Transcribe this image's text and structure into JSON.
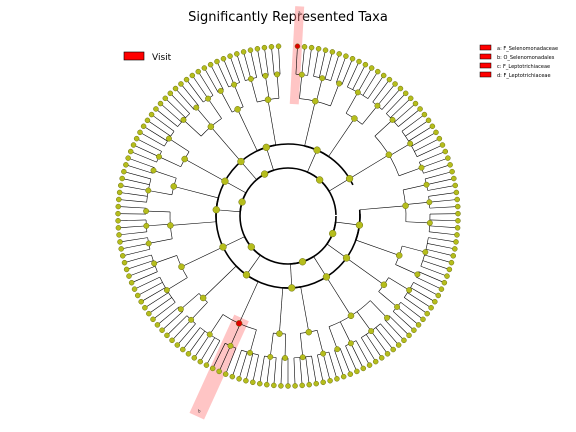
{
  "chart_data": {
    "type": "cladogram",
    "title": "Significantly Represented Taxa",
    "group_legend": {
      "label": "Visit",
      "color": "#ff0000"
    },
    "clade_legend": [
      {
        "key": "a",
        "label": "a: F_Selenomonadaceae"
      },
      {
        "key": "b",
        "label": "b: O_Selenomonadales"
      },
      {
        "key": "c",
        "label": "c: F_Leptotrichiaceae"
      },
      {
        "key": "d",
        "label": "d: F_Leptotrichiaceae"
      }
    ],
    "clade_markers": [
      "a",
      "b",
      "c",
      "d"
    ],
    "colors": {
      "node_fill": "#b5bd1c",
      "node_stroke": "#6a6e10",
      "highlight_node": "#e00000",
      "highlight_band": "#ff7f7f",
      "legend_box": "#ff0000"
    }
  }
}
